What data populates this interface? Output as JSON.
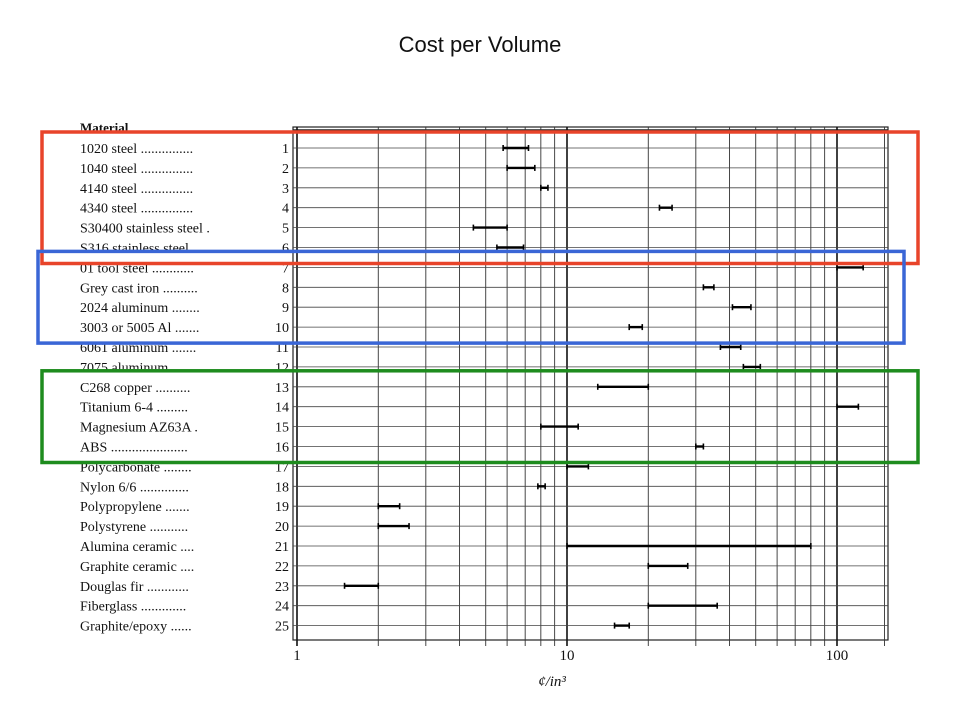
{
  "slide": {
    "title": "Cost per Volume"
  },
  "chart_data": {
    "type": "range-bar",
    "title": "",
    "header_label": "Material",
    "xlabel": "¢/in³",
    "x_scale": "log",
    "xlim": [
      1,
      160
    ],
    "xticks": [
      1,
      10,
      100
    ],
    "xtick_labels": [
      "1",
      "10",
      "100"
    ],
    "grid": true,
    "categories": [
      {
        "num": "1",
        "label": "1020 steel ...............",
        "low": 5.8,
        "high": 7.2
      },
      {
        "num": "2",
        "label": "1040 steel ...............",
        "low": 6.0,
        "high": 7.6
      },
      {
        "num": "3",
        "label": "4140 steel ...............",
        "low": 8.0,
        "high": 8.5
      },
      {
        "num": "4",
        "label": "4340 steel ...............",
        "low": 22.0,
        "high": 24.5
      },
      {
        "num": "5",
        "label": "S30400 stainless steel .",
        "low": 4.5,
        "high": 6.0
      },
      {
        "num": "6",
        "label": "S316 stainless steel ....",
        "low": 5.5,
        "high": 6.9
      },
      {
        "num": "7",
        "label": "01 tool steel ............",
        "low": 100,
        "high": 125
      },
      {
        "num": "8",
        "label": "Grey cast iron ..........",
        "low": 32,
        "high": 35
      },
      {
        "num": "9",
        "label": "2024 aluminum ........",
        "low": 41,
        "high": 48
      },
      {
        "num": "10",
        "label": "3003 or 5005 Al .......",
        "low": 17,
        "high": 19
      },
      {
        "num": "11",
        "label": "6061 aluminum .......",
        "low": 37,
        "high": 44
      },
      {
        "num": "12",
        "label": "7075 aluminum ........",
        "low": 45,
        "high": 52
      },
      {
        "num": "13",
        "label": "C268 copper ..........",
        "low": 13,
        "high": 20
      },
      {
        "num": "14",
        "label": "Titanium 6-4 .........",
        "low": 100,
        "high": 120
      },
      {
        "num": "15",
        "label": "Magnesium AZ63A .",
        "low": 8.0,
        "high": 11.0
      },
      {
        "num": "16",
        "label": "ABS ......................",
        "low": 30,
        "high": 32
      },
      {
        "num": "17",
        "label": "Polycarbonate ........",
        "low": 10.0,
        "high": 12.0
      },
      {
        "num": "18",
        "label": "Nylon 6/6 ..............",
        "low": 7.8,
        "high": 8.3
      },
      {
        "num": "19",
        "label": "Polypropylene .......",
        "low": 2.0,
        "high": 2.4
      },
      {
        "num": "20",
        "label": "Polystyrene ...........",
        "low": 2.0,
        "high": 2.6
      },
      {
        "num": "21",
        "label": "Alumina ceramic ....",
        "low": 10,
        "high": 80
      },
      {
        "num": "22",
        "label": "Graphite ceramic ....",
        "low": 20,
        "high": 28
      },
      {
        "num": "23",
        "label": "Douglas fir ............",
        "low": 1.5,
        "high": 2.0
      },
      {
        "num": "24",
        "label": "Fiberglass .............",
        "low": 20,
        "high": 36
      },
      {
        "num": "25",
        "label": "Graphite/epoxy ......",
        "low": 15,
        "high": 17
      }
    ]
  },
  "highlight_boxes": [
    {
      "name": "steels-highlight",
      "color": "#e8442a",
      "rows": [
        1,
        6
      ]
    },
    {
      "name": "iron-aluminum-highlight",
      "color": "#3a66d6",
      "rows": [
        7,
        10
      ]
    },
    {
      "name": "copper-titanium-magnesium-highlight",
      "color": "#1e8c1e",
      "rows": [
        13,
        16
      ]
    }
  ]
}
